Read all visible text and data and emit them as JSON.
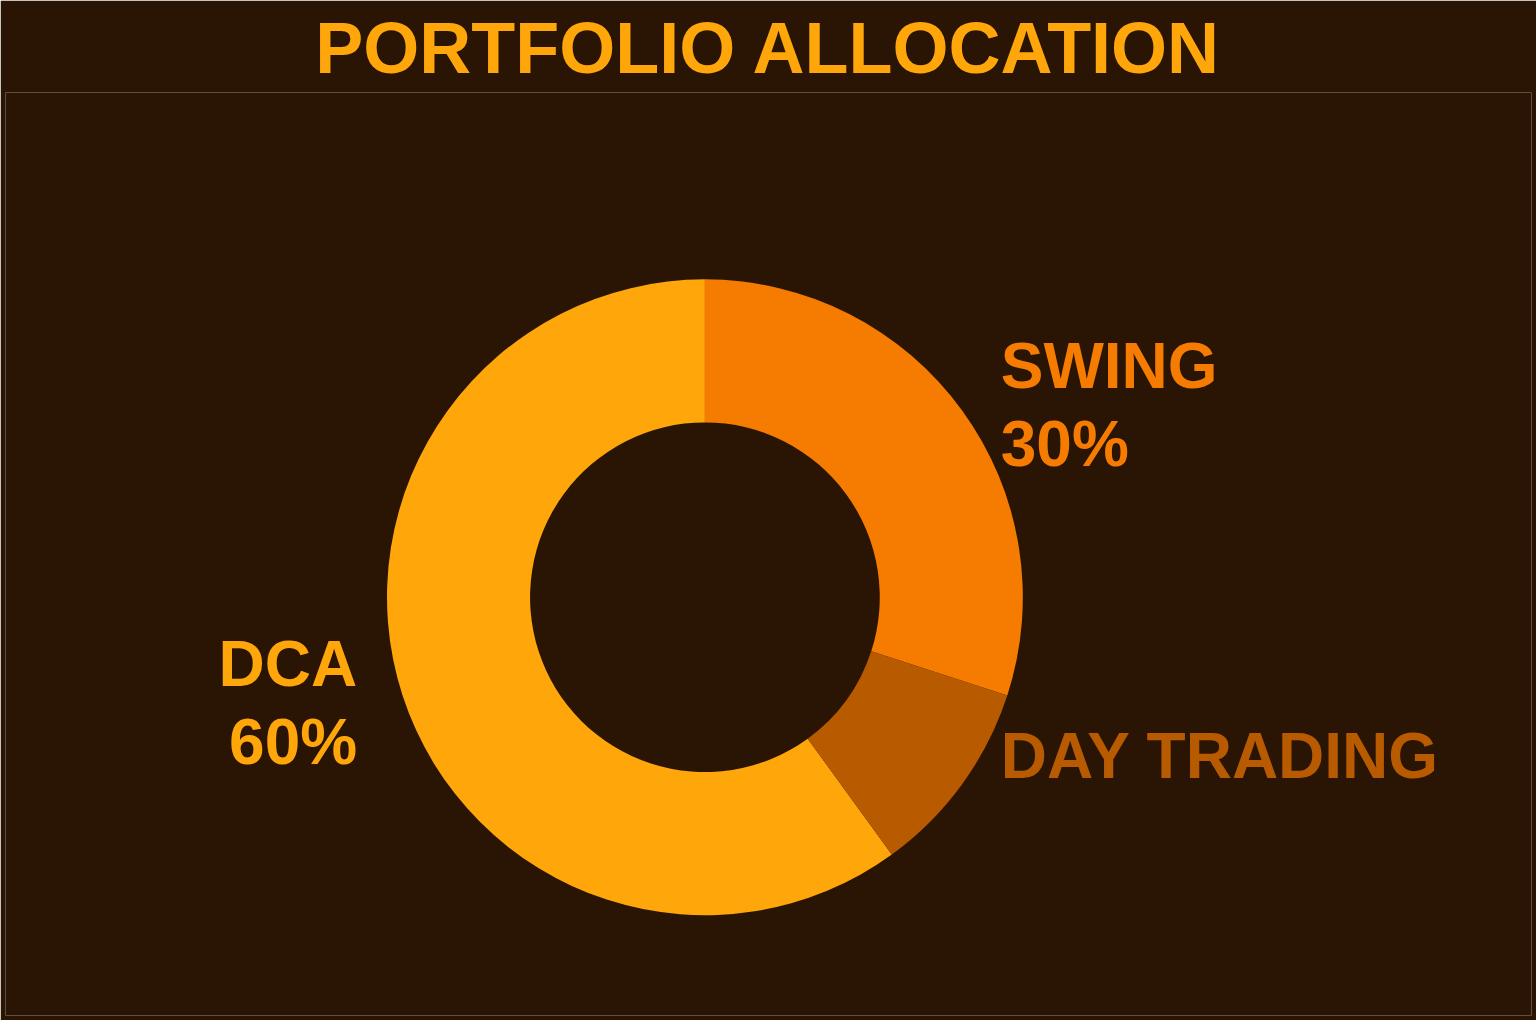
{
  "chart_data": {
    "type": "donut",
    "title": "PORTFOLIO ALLOCATION",
    "categories": [
      "DCA",
      "SWING",
      "DAY TRADING"
    ],
    "values": [
      60,
      30,
      10
    ],
    "colors": [
      "#ffa70a",
      "#f57c00",
      "#b85a00"
    ],
    "value_labels": [
      "60%",
      "30%",
      null
    ]
  }
}
